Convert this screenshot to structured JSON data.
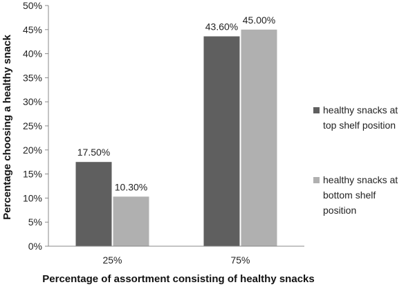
{
  "chart_data": {
    "type": "bar",
    "categories": [
      "25%",
      "75%"
    ],
    "series": [
      {
        "name": "healthy snacks at top shelf position",
        "legend_lines": [
          "healthy snacks at",
          "top shelf position"
        ],
        "color": "#5f5f5f",
        "values": [
          17.5,
          43.6
        ],
        "labels": [
          "17.50%",
          "43.60%"
        ]
      },
      {
        "name": "healthy snacks at bottom shelf position",
        "legend_lines": [
          "healthy snacks at",
          "bottom shelf",
          "position"
        ],
        "color": "#b0b0b0",
        "values": [
          10.3,
          45.0
        ],
        "labels": [
          "10.30%",
          "45.00%"
        ]
      }
    ],
    "xlabel": "Percentage of assortment consisting of healthy snacks",
    "ylabel": "Percentage choosing a healthy snack",
    "ylim": [
      0,
      50
    ],
    "yticks": [
      "0%",
      "5%",
      "10%",
      "15%",
      "20%",
      "25%",
      "30%",
      "35%",
      "40%",
      "45%",
      "50%"
    ],
    "grid": false,
    "legend_position": "right"
  }
}
